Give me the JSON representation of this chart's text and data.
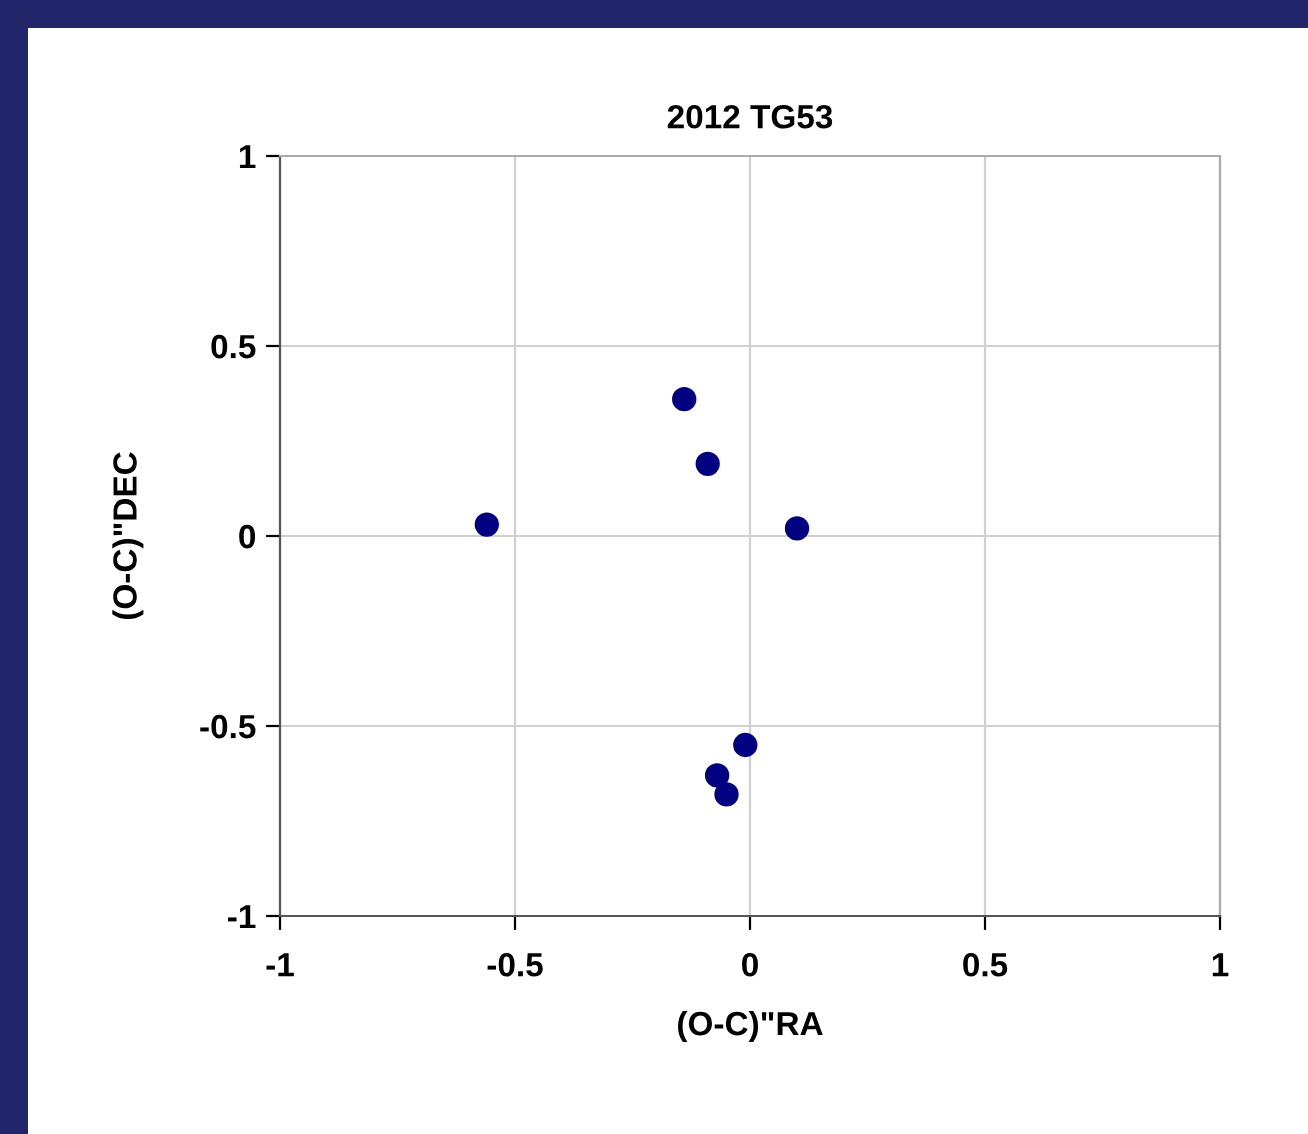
{
  "chart_data": {
    "type": "scatter",
    "title": "2012 TG53",
    "xlabel": "(O-C)\"RA",
    "ylabel": "(O-C)\"DEC",
    "series": [
      {
        "color": "#000080",
        "x": [
          -0.56,
          -0.14,
          -0.09,
          0.1,
          -0.01,
          -0.07,
          -0.05
        ],
        "values": [
          0.03,
          0.36,
          0.19,
          0.02,
          -0.55,
          -0.63,
          -0.68
        ]
      }
    ],
    "xlim": [
      -1,
      1
    ],
    "ylim": [
      -1,
      1
    ],
    "xticks": [
      -1,
      -0.5,
      0,
      0.5,
      1
    ],
    "yticks": [
      -1,
      -0.5,
      0,
      0.5,
      1
    ],
    "grid": true,
    "marker": "circle"
  }
}
